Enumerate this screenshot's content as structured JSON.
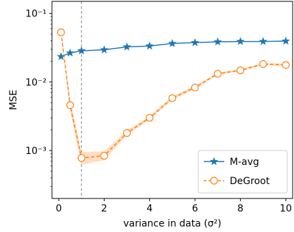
{
  "chart_data": {
    "type": "line",
    "xlabel": "variance in data (σ²)",
    "ylabel": "MSE",
    "xlim": [
      -0.3,
      10.3
    ],
    "ylim": [
      0.0002,
      0.15
    ],
    "yscale": "log",
    "x_ticks": [
      0,
      2,
      4,
      6,
      8,
      10
    ],
    "x_tick_labels": [
      "0",
      "2",
      "4",
      "6",
      "8",
      "10"
    ],
    "y_ticks": [
      0.001,
      0.01,
      0.1
    ],
    "y_tick_labels": [
      "10⁻³",
      "10⁻²",
      "10⁻¹"
    ],
    "vline": 1,
    "legend_position": "lower-right",
    "series": [
      {
        "name": "M-avg",
        "color": "#1f77b4",
        "marker": "star",
        "linestyle": "solid",
        "x": [
          0.1,
          0.5,
          1,
          2,
          3,
          4,
          5,
          6,
          7,
          8,
          9,
          10
        ],
        "y": [
          0.0235,
          0.0265,
          0.0285,
          0.0295,
          0.0325,
          0.0335,
          0.0365,
          0.0375,
          0.0385,
          0.039,
          0.039,
          0.0395
        ]
      },
      {
        "name": "DeGroot",
        "color": "#ff7f0e",
        "marker": "circle-open",
        "linestyle": "dashed",
        "x": [
          0.1,
          0.5,
          1,
          2,
          3,
          4,
          5,
          6,
          7,
          8,
          9,
          10
        ],
        "y": [
          0.053,
          0.0046,
          0.00078,
          0.00084,
          0.0018,
          0.003,
          0.0058,
          0.0083,
          0.0132,
          0.0148,
          0.0183,
          0.0177
        ],
        "band_low": [
          0.05,
          0.0038,
          0.00062,
          0.00072,
          0.00168,
          0.00282,
          0.0055,
          0.0079,
          0.0127,
          0.0143,
          0.0176,
          0.017
        ],
        "band_high": [
          0.056,
          0.0055,
          0.00095,
          0.00098,
          0.00195,
          0.0032,
          0.0062,
          0.0088,
          0.0138,
          0.0154,
          0.019,
          0.0185
        ]
      }
    ]
  }
}
